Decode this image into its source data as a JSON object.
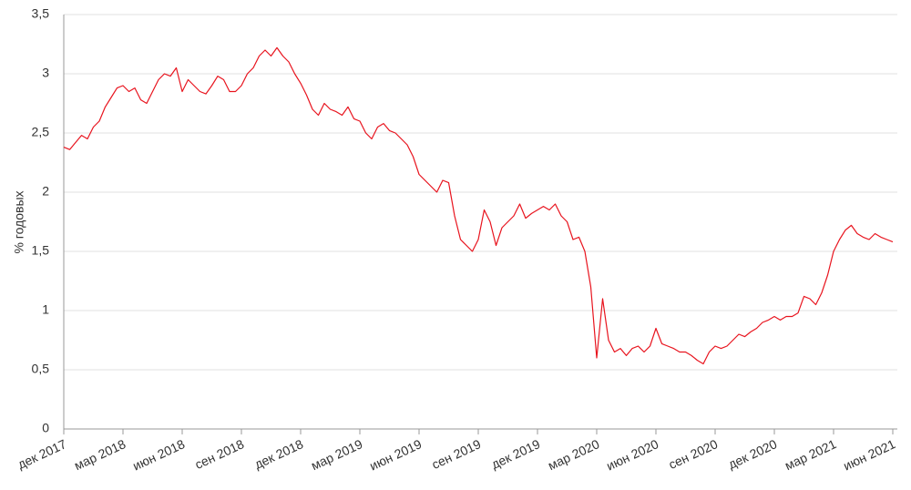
{
  "chart_data": {
    "type": "line",
    "y_label": "% годовых",
    "color": "#e8141e",
    "categories": [
      "дек 2017",
      null,
      null,
      null,
      null,
      null,
      null,
      null,
      null,
      null,
      "мар 2018",
      null,
      null,
      null,
      null,
      null,
      null,
      null,
      null,
      null,
      "июн 2018",
      null,
      null,
      null,
      null,
      null,
      null,
      null,
      null,
      null,
      "сен 2018",
      null,
      null,
      null,
      null,
      null,
      null,
      null,
      null,
      null,
      "дек 2018",
      null,
      null,
      null,
      null,
      null,
      null,
      null,
      null,
      null,
      "мар 2019",
      null,
      null,
      null,
      null,
      null,
      null,
      null,
      null,
      null,
      "июн 2019",
      null,
      null,
      null,
      null,
      null,
      null,
      null,
      null,
      null,
      "сен 2019",
      null,
      null,
      null,
      null,
      null,
      null,
      null,
      null,
      null,
      "дек 2019",
      null,
      null,
      null,
      null,
      null,
      null,
      null,
      null,
      null,
      "мар 2020",
      null,
      null,
      null,
      null,
      null,
      null,
      null,
      null,
      null,
      "июн 2020",
      null,
      null,
      null,
      null,
      null,
      null,
      null,
      null,
      null,
      "сен 2020",
      null,
      null,
      null,
      null,
      null,
      null,
      null,
      null,
      null,
      "дек 2020",
      null,
      null,
      null,
      null,
      null,
      null,
      null,
      null,
      null,
      "мар 2021",
      null,
      null,
      null,
      null,
      null,
      null,
      null,
      null,
      null,
      "июн 2021"
    ],
    "values": [
      2.38,
      2.36,
      2.42,
      2.48,
      2.45,
      2.55,
      2.6,
      2.72,
      2.8,
      2.88,
      2.9,
      2.85,
      2.88,
      2.78,
      2.75,
      2.85,
      2.95,
      3.0,
      2.98,
      3.05,
      2.85,
      2.95,
      2.9,
      2.85,
      2.83,
      2.9,
      2.98,
      2.95,
      2.85,
      2.85,
      2.9,
      3.0,
      3.05,
      3.15,
      3.2,
      3.15,
      3.22,
      3.15,
      3.1,
      3.0,
      2.92,
      2.82,
      2.7,
      2.65,
      2.75,
      2.7,
      2.68,
      2.65,
      2.72,
      2.62,
      2.6,
      2.5,
      2.45,
      2.55,
      2.58,
      2.52,
      2.5,
      2.45,
      2.4,
      2.3,
      2.15,
      2.1,
      2.05,
      2.0,
      2.1,
      2.08,
      1.8,
      1.6,
      1.55,
      1.5,
      1.6,
      1.85,
      1.75,
      1.55,
      1.7,
      1.75,
      1.8,
      1.9,
      1.78,
      1.82,
      1.85,
      1.88,
      1.85,
      1.9,
      1.8,
      1.75,
      1.6,
      1.62,
      1.5,
      1.2,
      0.6,
      1.1,
      0.75,
      0.65,
      0.68,
      0.62,
      0.68,
      0.7,
      0.65,
      0.7,
      0.85,
      0.72,
      0.7,
      0.68,
      0.65,
      0.65,
      0.62,
      0.58,
      0.55,
      0.65,
      0.7,
      0.68,
      0.7,
      0.75,
      0.8,
      0.78,
      0.82,
      0.85,
      0.9,
      0.92,
      0.95,
      0.92,
      0.95,
      0.95,
      0.98,
      1.12,
      1.1,
      1.05,
      1.15,
      1.3,
      1.5,
      1.6,
      1.68,
      1.72,
      1.65,
      1.62,
      1.6,
      1.65,
      1.62,
      1.6,
      1.58
    ],
    "ylim": [
      0,
      3.5
    ],
    "yticks": [
      0,
      {
        "value": 0.5,
        "label": "0,5"
      },
      1,
      {
        "value": 1.5,
        "label": "1,5"
      },
      2,
      {
        "value": 2.5,
        "label": "2,5"
      },
      3,
      {
        "value": 3.5,
        "label": "3,5"
      }
    ],
    "grid": true
  }
}
